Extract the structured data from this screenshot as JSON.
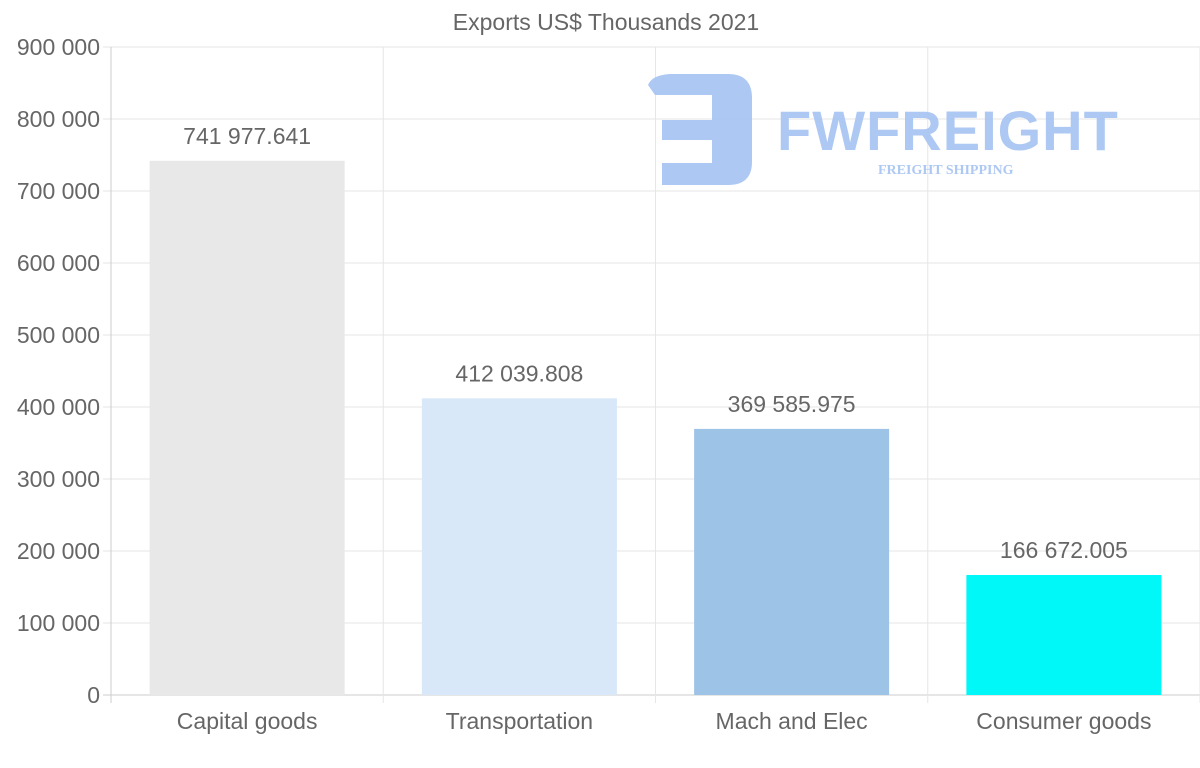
{
  "chart_data": {
    "type": "bar",
    "title": "Exports US$ Thousands 2021",
    "categories": [
      "Capital goods",
      "Transportation",
      "Mach and Elec",
      "Consumer goods"
    ],
    "values": [
      741977.641,
      412039.808,
      369585.975,
      166672.005
    ],
    "value_labels": [
      "741 977.641",
      "412 039.808",
      "369 585.975",
      "166 672.005"
    ],
    "colors": [
      "#e8e8e8",
      "#d8e8f8",
      "#9dc3e6",
      "#00f8f8"
    ],
    "ylim": [
      0,
      900000
    ],
    "yticks": [
      0,
      100000,
      200000,
      300000,
      400000,
      500000,
      600000,
      700000,
      800000,
      900000
    ],
    "ytick_labels": [
      "0",
      "100 000",
      "200 000",
      "300 000",
      "400 000",
      "500 000",
      "600 000",
      "700 000",
      "800 000",
      "900 000"
    ],
    "xlabel": "",
    "ylabel": "",
    "grid": true,
    "legend": "none"
  },
  "watermark": {
    "brand": "FWFREIGHT",
    "tagline": "FREIGHT SHIPPING",
    "color": "#a9c6f2"
  }
}
